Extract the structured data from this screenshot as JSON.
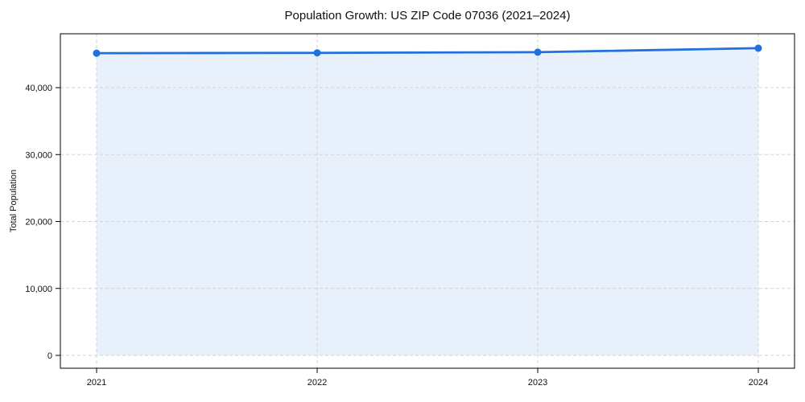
{
  "chart_data": {
    "type": "area",
    "title": "Population Growth: US ZIP Code 07036 (2021–2024)",
    "categories": [
      "2021",
      "2022",
      "2023",
      "2024"
    ],
    "series": [
      {
        "name": "Total Population",
        "values": [
          45150,
          45200,
          45300,
          45900
        ]
      }
    ],
    "xlabel": "",
    "ylabel": "Total Population",
    "ylim": [
      -1920,
      48050
    ],
    "yticks": [
      0,
      10000,
      20000,
      30000,
      40000
    ],
    "ytick_labels": [
      "0",
      "10,000",
      "20,000",
      "30,000",
      "40,000"
    ],
    "grid": true,
    "legend": "none",
    "line_color": "#2170e0",
    "fill_alpha": 0.1,
    "marker": "circle",
    "background": "#ffffff",
    "spine_color": "#000000"
  }
}
